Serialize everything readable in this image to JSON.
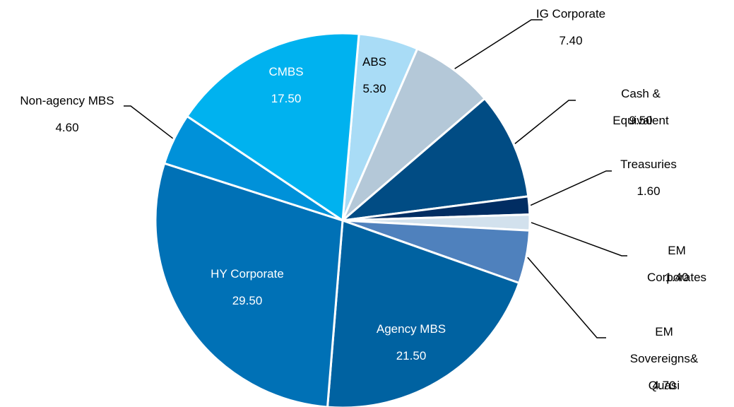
{
  "chart_data": {
    "type": "pie",
    "categories": [
      "ABS",
      "IG Corporate",
      "Cash & Equivalent",
      "Treasuries",
      "EM Corporates",
      "EM Sovereigns&\nQuasi Sovereig",
      "Agency MBS",
      "HY Corporate",
      "Non-agency MBS",
      "CMBS"
    ],
    "values": [
      5.3,
      7.4,
      9.5,
      1.6,
      1.4,
      4.7,
      21.5,
      29.5,
      4.6,
      17.5
    ],
    "value_labels": [
      "5.30",
      "7.40",
      "9.50",
      "1.60",
      "1.40",
      "4.70",
      "21.50",
      "29.50",
      "4.60",
      "17.50"
    ],
    "colors": [
      "#a9dcf6",
      "#b4c8d8",
      "#014c84",
      "#012d62",
      "#d2e1ed",
      "#4f81bd",
      "#0062a1",
      "#0071b6",
      "#0091d9",
      "#00b2ef"
    ]
  }
}
